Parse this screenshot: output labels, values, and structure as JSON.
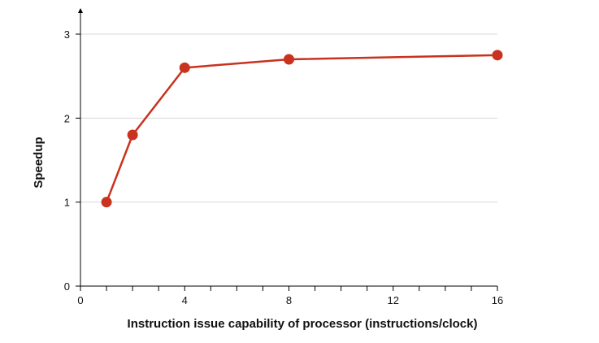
{
  "chart_data": {
    "type": "line",
    "title": "",
    "xlabel": "Instruction issue capability of processor (instructions/clock)",
    "ylabel": "Speedup",
    "xlim": [
      0,
      16
    ],
    "ylim": [
      0,
      3
    ],
    "x_ticks": [
      0,
      4,
      8,
      12,
      16
    ],
    "x_minor_ticks": [
      1,
      2,
      3,
      5,
      6,
      7,
      9,
      10,
      11,
      13,
      14,
      15
    ],
    "y_ticks": [
      0,
      1,
      2,
      3
    ],
    "grid": "horizontal",
    "series": [
      {
        "x": [
          1,
          2,
          4,
          8,
          16
        ],
        "y": [
          1.0,
          1.8,
          2.6,
          2.7,
          2.75
        ]
      }
    ],
    "colors": {
      "series": "#c8321e",
      "axis": "#000000",
      "grid": "#d8d8d8"
    }
  }
}
